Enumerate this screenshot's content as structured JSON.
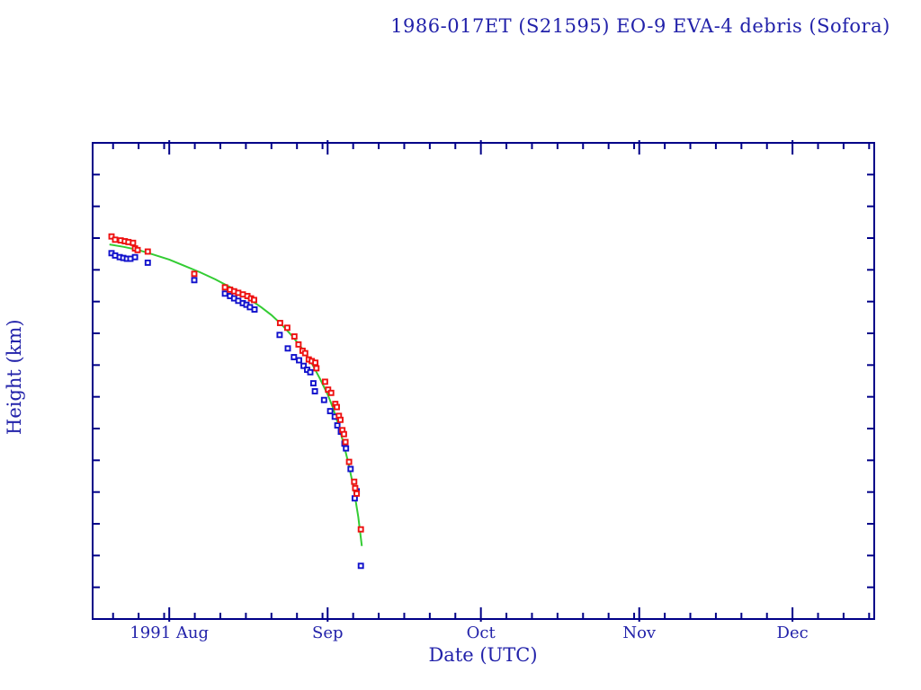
{
  "chart_data": {
    "type": "scatter",
    "title": "1986-017ET (S21595) EO-9 EVA-4 debris (Sofora)",
    "xlabel": "Date (UTC)",
    "ylabel": "Height (km)",
    "grid": false,
    "legend": "none",
    "colors": {
      "frame": "#000088",
      "text": "#2222aa",
      "series_upper": "#ee1111",
      "series_lower": "#1111cc",
      "fit_curve": "#33cc33",
      "background": "#ffffff"
    },
    "x_axis": {
      "unit": "days since 1991 Jul 17",
      "range_days": [
        0,
        153
      ],
      "major_ticks": [
        {
          "day": 15,
          "label": "1991 Aug"
        },
        {
          "day": 46,
          "label": "Sep"
        },
        {
          "day": 76,
          "label": "Oct"
        },
        {
          "day": 107,
          "label": "Nov"
        },
        {
          "day": 137,
          "label": "Dec"
        }
      ],
      "minor_tick_days": [
        4,
        9,
        14,
        20,
        25,
        30,
        35,
        40,
        45,
        51,
        56,
        61,
        66,
        71,
        81,
        86,
        91,
        96,
        101,
        106,
        112,
        117,
        122,
        127,
        132,
        142,
        147,
        152
      ]
    },
    "y_axis": {
      "range": [
        150,
        450
      ],
      "major_ticks": [
        200,
        300,
        400
      ],
      "minor_tick_step": 20
    },
    "series": [
      {
        "name": "height-upper-red",
        "marker": "open-square",
        "color_key": "series_upper",
        "points": [
          [
            3.7,
            391
          ],
          [
            4.4,
            389
          ],
          [
            5.5,
            388.5
          ],
          [
            6.3,
            388
          ],
          [
            7.0,
            387.5
          ],
          [
            7.9,
            387
          ],
          [
            8.3,
            383.5
          ],
          [
            8.8,
            382.5
          ],
          [
            10.8,
            381.5
          ],
          [
            19.9,
            367.5
          ],
          [
            25.9,
            359
          ],
          [
            26.9,
            357.5
          ],
          [
            27.7,
            356.5
          ],
          [
            28.5,
            355.5
          ],
          [
            29.4,
            354.5
          ],
          [
            30.3,
            353.5
          ],
          [
            31.0,
            352
          ],
          [
            31.6,
            351
          ],
          [
            36.7,
            336.5
          ],
          [
            38.1,
            333.5
          ],
          [
            39.5,
            328
          ],
          [
            40.3,
            323
          ],
          [
            41.1,
            319
          ],
          [
            41.6,
            317.5
          ],
          [
            42.3,
            313.5
          ],
          [
            42.9,
            312.5
          ],
          [
            43.6,
            311.5
          ],
          [
            43.8,
            308
          ],
          [
            45.5,
            299.5
          ],
          [
            46.1,
            294.5
          ],
          [
            46.7,
            292.5
          ],
          [
            47.5,
            285.5
          ],
          [
            47.8,
            283.5
          ],
          [
            48.2,
            278
          ],
          [
            48.5,
            275.5
          ],
          [
            48.9,
            269
          ],
          [
            49.2,
            266.5
          ],
          [
            49.5,
            261.5
          ],
          [
            50.2,
            249
          ],
          [
            51.2,
            236.5
          ],
          [
            51.4,
            232.5
          ],
          [
            51.7,
            229
          ],
          [
            52.5,
            206.5
          ]
        ]
      },
      {
        "name": "height-lower-blue",
        "marker": "open-square",
        "color_key": "series_lower",
        "points": [
          [
            3.7,
            380.5
          ],
          [
            4.4,
            379
          ],
          [
            5.3,
            378
          ],
          [
            6.0,
            377.5
          ],
          [
            6.7,
            377
          ],
          [
            7.4,
            377
          ],
          [
            8.3,
            378
          ],
          [
            10.8,
            374.5
          ],
          [
            19.9,
            363.5
          ],
          [
            25.9,
            355
          ],
          [
            26.9,
            353.5
          ],
          [
            27.7,
            352
          ],
          [
            28.5,
            350.5
          ],
          [
            29.4,
            349
          ],
          [
            30.1,
            348
          ],
          [
            30.8,
            346.5
          ],
          [
            31.7,
            345
          ],
          [
            36.6,
            329
          ],
          [
            38.2,
            320.5
          ],
          [
            39.4,
            315
          ],
          [
            40.4,
            313
          ],
          [
            41.3,
            309.5
          ],
          [
            42.0,
            307
          ],
          [
            42.6,
            305.5
          ],
          [
            43.2,
            298.5
          ],
          [
            43.5,
            293.5
          ],
          [
            45.3,
            288
          ],
          [
            46.5,
            281
          ],
          [
            47.4,
            277.5
          ],
          [
            47.9,
            272
          ],
          [
            48.6,
            268
          ],
          [
            49.3,
            260.5
          ],
          [
            49.6,
            257.5
          ],
          [
            50.5,
            244.5
          ],
          [
            51.3,
            226
          ],
          [
            51.7,
            230.5
          ],
          [
            52.5,
            183.5
          ]
        ]
      },
      {
        "name": "decay-fit-curve",
        "marker": "none",
        "type": "line",
        "color_key": "fit_curve",
        "points": [
          [
            3.3,
            386
          ],
          [
            6,
            384.5
          ],
          [
            9,
            382.5
          ],
          [
            12,
            379.5
          ],
          [
            15,
            376.5
          ],
          [
            18,
            372.5
          ],
          [
            21,
            368.5
          ],
          [
            24,
            364
          ],
          [
            27,
            359
          ],
          [
            30,
            353
          ],
          [
            33,
            346.5
          ],
          [
            35,
            341.5
          ],
          [
            37,
            335.5
          ],
          [
            39,
            328.5
          ],
          [
            41,
            320.5
          ],
          [
            43,
            310.5
          ],
          [
            44.5,
            301.5
          ],
          [
            46,
            291.5
          ],
          [
            47,
            283.5
          ],
          [
            48,
            273.5
          ],
          [
            49,
            262
          ],
          [
            50,
            249
          ],
          [
            51,
            234
          ],
          [
            52,
            214.5
          ],
          [
            52.7,
            196
          ]
        ]
      }
    ]
  }
}
